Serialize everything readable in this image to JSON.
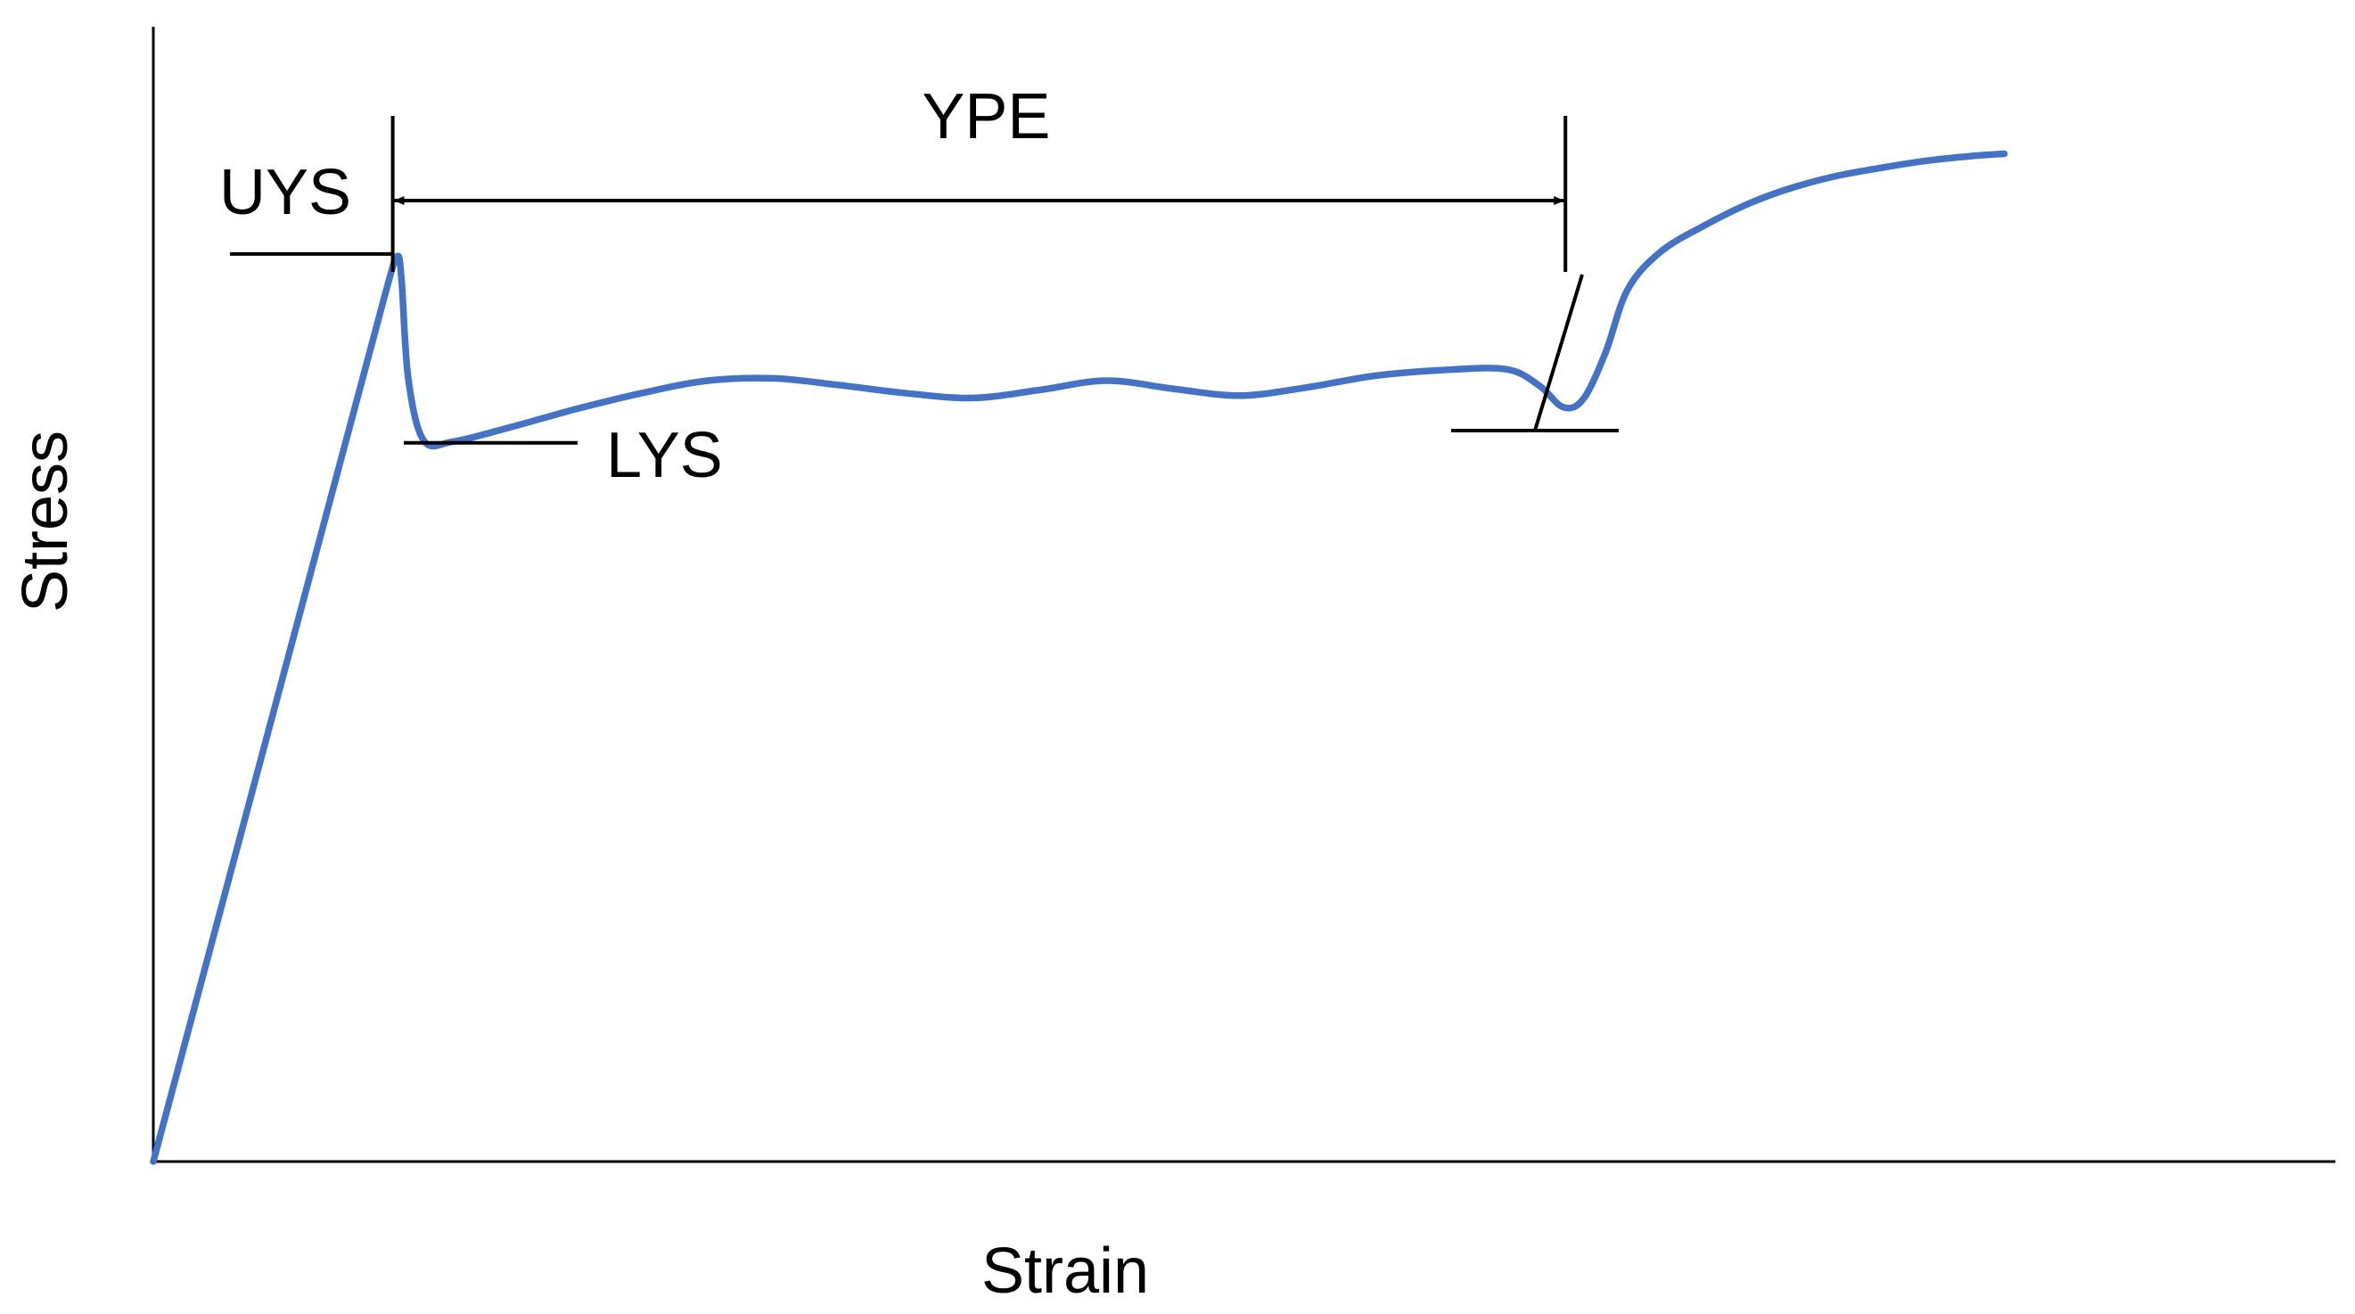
{
  "colors": {
    "curve": "#4472C4",
    "axes": "#000000",
    "background": "#ffffff"
  },
  "chart_data": {
    "type": "line",
    "title": "",
    "xlabel": "Strain",
    "ylabel": "Stress",
    "xticks": "none",
    "yticks": "none",
    "grid": false,
    "legend": "none",
    "xlim": [
      0,
      100
    ],
    "ylim": [
      0,
      100
    ],
    "series": [
      {
        "x": [
          0,
          3,
          6,
          9,
          10.5,
          11,
          11.2,
          11.5,
          12.2,
          13.5,
          16,
          19,
          22,
          25,
          28,
          31,
          34,
          37,
          40,
          43,
          46,
          49,
          52,
          55,
          58,
          61,
          62.5,
          63.6,
          64.5,
          65.5,
          66.5,
          68,
          70,
          72,
          74,
          76,
          78,
          80,
          82,
          83.5
        ],
        "y": [
          0,
          21.6,
          43.2,
          64.8,
          75.6,
          78.6,
          76.5,
          68,
          62.6,
          62.5,
          63.7,
          65.3,
          66.7,
          67.8,
          68.0,
          67.4,
          66.7,
          66.3,
          67.0,
          67.8,
          67.1,
          66.5,
          67.2,
          68.2,
          68.7,
          68.8,
          67.4,
          65.5,
          66.2,
          70.2,
          75.7,
          79.0,
          81.3,
          83.2,
          84.6,
          85.6,
          86.3,
          86.9,
          87.3,
          87.5
        ]
      }
    ],
    "annotations": [
      {
        "label": "UYS",
        "x": 10.8,
        "y": 78.8
      },
      {
        "label": "LYS",
        "x": 11.3,
        "y": 62.4
      },
      {
        "label": "YPE",
        "x_start": 10.8,
        "x_end": 63.7
      }
    ]
  }
}
